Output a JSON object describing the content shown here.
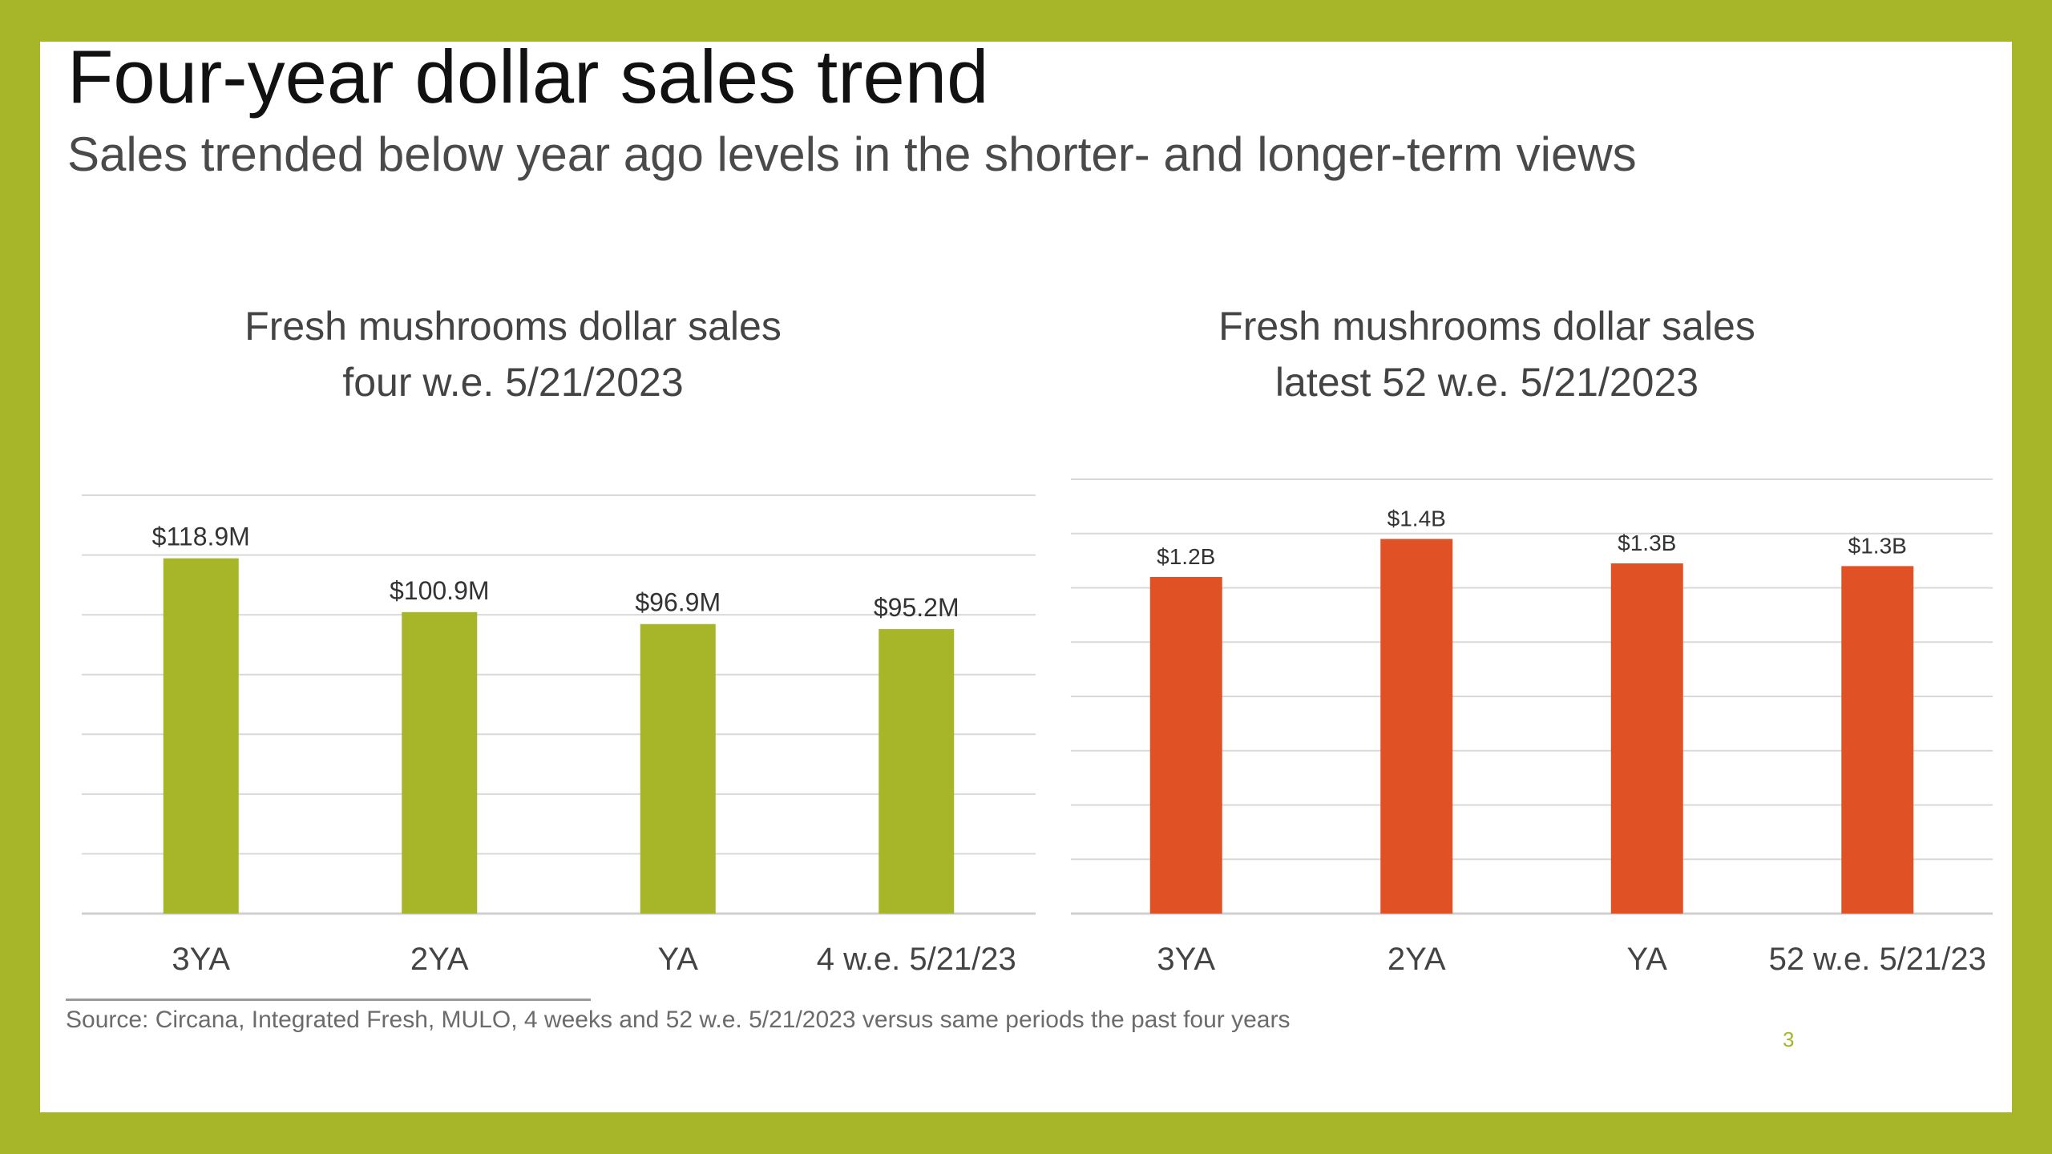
{
  "slide": {
    "title": "Four-year dollar sales trend",
    "subtitle": "Sales trended below year ago levels in the shorter- and longer-term views",
    "source": "Source: Circana, Integrated Fresh, MULO, 4 weeks and 52 w.e. 5/21/2023 versus same periods the past four years",
    "page_number": "3"
  },
  "colors": {
    "frame": "#a7b628",
    "left_bars": "#a7b628",
    "right_bars": "#e05226",
    "gridline": "#d9d9d9"
  },
  "chart_data": [
    {
      "type": "bar",
      "title": [
        "Fresh mushrooms dollar sales",
        "four w.e. 5/21/2023"
      ],
      "categories": [
        "3YA",
        "2YA",
        "YA",
        "4 w.e. 5/21/23"
      ],
      "values": [
        118.9,
        100.9,
        96.9,
        95.2
      ],
      "data_labels": [
        "$118.9M",
        "$100.9M",
        "$96.9M",
        "$95.2M"
      ],
      "unit": "millions of dollars",
      "ylim": [
        0,
        140
      ],
      "grid": true,
      "gridline_step": 20
    },
    {
      "type": "bar",
      "title": [
        "Fresh mushrooms dollar sales",
        "latest 52 w.e. 5/21/2023"
      ],
      "categories": [
        "3YA",
        "2YA",
        "YA",
        "52 w.e. 5/21/23"
      ],
      "values": [
        1.24,
        1.38,
        1.29,
        1.28
      ],
      "data_labels": [
        "$1.2B",
        "$1.4B",
        "$1.3B",
        "$1.3B"
      ],
      "unit": "billions of dollars",
      "ylim": [
        0,
        1.6
      ],
      "grid": true,
      "gridline_step": 0.2
    }
  ]
}
